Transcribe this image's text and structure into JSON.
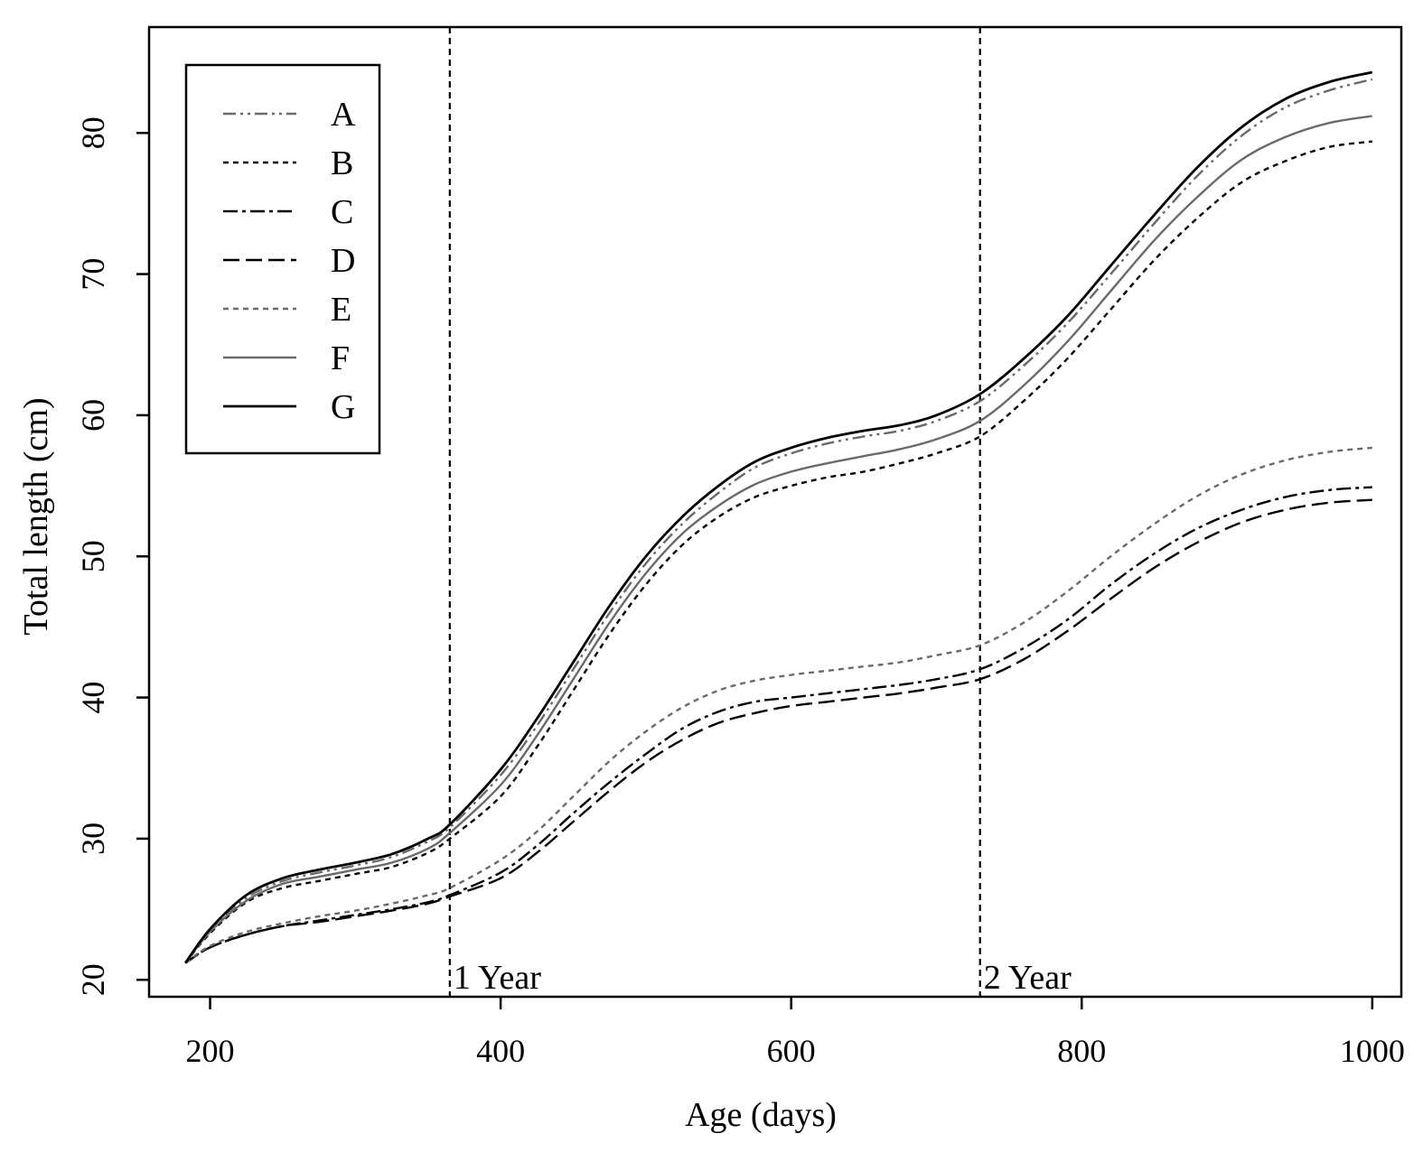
{
  "chart_data": {
    "type": "line",
    "xlabel": "Age (days)",
    "ylabel": "Total length (cm)",
    "xlim": [
      158,
      1020
    ],
    "ylim": [
      18.8,
      87.5
    ],
    "xticks": [
      200,
      400,
      600,
      800,
      1000
    ],
    "yticks": [
      20,
      30,
      40,
      50,
      60,
      70,
      80
    ],
    "grid": false,
    "legend_position": "top-left",
    "vlines": [
      {
        "x": 365,
        "label": "1 Year"
      },
      {
        "x": 730,
        "label": "2 Year"
      }
    ],
    "x": [
      183,
      200,
      225,
      250,
      275,
      300,
      325,
      350,
      365,
      400,
      425,
      450,
      475,
      500,
      525,
      550,
      575,
      600,
      625,
      650,
      675,
      700,
      730,
      760,
      790,
      820,
      850,
      880,
      910,
      940,
      970,
      1000
    ],
    "series": [
      {
        "name": "A",
        "color": "#6a6a6a",
        "dash": "14 5 3 5 3 5",
        "width": 2.4,
        "values": [
          21.2,
          23.5,
          25.8,
          27.0,
          27.6,
          28.1,
          28.7,
          29.8,
          30.8,
          34.5,
          38.0,
          42.0,
          46.0,
          49.5,
          52.3,
          54.5,
          56.3,
          57.3,
          58.0,
          58.5,
          58.9,
          59.6,
          61.0,
          63.5,
          66.5,
          70.0,
          73.6,
          77.0,
          79.8,
          81.8,
          83.0,
          83.8
        ]
      },
      {
        "name": "B",
        "color": "#000000",
        "dash": "6 5",
        "width": 2.4,
        "values": [
          21.2,
          23.3,
          25.5,
          26.5,
          27.0,
          27.5,
          28.0,
          29.0,
          30.0,
          33.0,
          36.5,
          40.5,
          44.5,
          48.0,
          50.8,
          52.8,
          54.2,
          55.0,
          55.6,
          56.0,
          56.6,
          57.3,
          58.5,
          61.0,
          64.0,
          67.5,
          71.0,
          74.0,
          76.5,
          78.0,
          79.0,
          79.4
        ]
      },
      {
        "name": "C",
        "color": "#000000",
        "dash": "16 5 4 5",
        "width": 2.4,
        "values": [
          21.2,
          22.3,
          23.2,
          23.8,
          24.2,
          24.6,
          25.0,
          25.5,
          26.0,
          27.6,
          29.5,
          31.8,
          34.0,
          36.0,
          37.8,
          39.0,
          39.7,
          40.0,
          40.3,
          40.6,
          40.9,
          41.3,
          42.0,
          43.5,
          45.5,
          48.0,
          50.2,
          52.0,
          53.3,
          54.2,
          54.7,
          54.9
        ]
      },
      {
        "name": "D",
        "color": "#000000",
        "dash": "18 7",
        "width": 2.4,
        "values": [
          21.2,
          22.3,
          23.2,
          23.8,
          24.1,
          24.5,
          24.9,
          25.4,
          25.9,
          27.2,
          29.0,
          31.2,
          33.4,
          35.4,
          37.0,
          38.2,
          38.9,
          39.4,
          39.7,
          40.0,
          40.3,
          40.7,
          41.3,
          42.7,
          44.7,
          47.0,
          49.2,
          51.0,
          52.4,
          53.3,
          53.8,
          54.0
        ]
      },
      {
        "name": "E",
        "color": "#6a6a6a",
        "dash": "6 5",
        "width": 2.4,
        "values": [
          21.2,
          22.4,
          23.4,
          24.0,
          24.5,
          24.9,
          25.4,
          26.0,
          26.5,
          28.5,
          30.5,
          33.0,
          35.5,
          37.6,
          39.3,
          40.5,
          41.2,
          41.6,
          41.9,
          42.2,
          42.5,
          43.0,
          43.7,
          45.3,
          47.5,
          50.0,
          52.3,
          54.3,
          55.8,
          56.8,
          57.4,
          57.7
        ]
      },
      {
        "name": "F",
        "color": "#6a6a6a",
        "dash": "",
        "width": 2.4,
        "values": [
          21.2,
          23.4,
          25.6,
          26.8,
          27.3,
          27.8,
          28.3,
          29.3,
          30.4,
          33.8,
          37.3,
          41.3,
          45.3,
          48.8,
          51.6,
          53.6,
          55.1,
          56.0,
          56.6,
          57.1,
          57.6,
          58.3,
          59.6,
          62.1,
          65.2,
          68.8,
          72.4,
          75.5,
          78.1,
          79.7,
          80.7,
          81.2
        ]
      },
      {
        "name": "G",
        "color": "#000000",
        "dash": "",
        "width": 2.8,
        "values": [
          21.2,
          23.6,
          26.0,
          27.2,
          27.8,
          28.3,
          28.9,
          30.0,
          31.0,
          34.9,
          38.5,
          42.5,
          46.5,
          50.0,
          52.8,
          55.0,
          56.7,
          57.7,
          58.4,
          58.9,
          59.3,
          60.0,
          61.5,
          64.0,
          67.0,
          70.6,
          74.2,
          77.6,
          80.4,
          82.4,
          83.6,
          84.3
        ]
      }
    ]
  }
}
